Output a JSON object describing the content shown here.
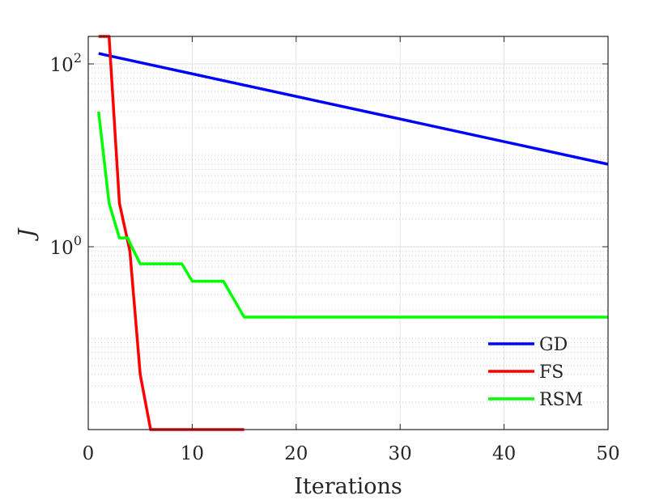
{
  "chart_data": {
    "type": "line",
    "xlabel": "Iterations",
    "ylabel": "J",
    "xlim": [
      0,
      50
    ],
    "ylim": [
      0.01,
      200
    ],
    "yscale": "log",
    "grid": true,
    "legend_position": "bottom-right",
    "x_ticks": [
      0,
      10,
      20,
      30,
      40,
      50
    ],
    "y_ticks": [
      {
        "value": 100,
        "base": "10",
        "exp": "2"
      },
      {
        "value": 1,
        "base": "10",
        "exp": "0"
      }
    ],
    "series": [
      {
        "name": "GD",
        "color": "#0000ff",
        "x": [
          1,
          50
        ],
        "y": [
          130,
          8
        ]
      },
      {
        "name": "FS",
        "color": "#ff0000",
        "x": [
          1,
          2,
          3,
          4,
          5,
          6,
          15
        ],
        "y": [
          200,
          200,
          3.0,
          0.9,
          0.04,
          0.01,
          0.01
        ]
      },
      {
        "name": "RSM",
        "color": "#00ff00",
        "x": [
          1,
          2,
          3,
          3.8,
          4,
          5,
          9,
          10,
          13,
          15,
          50
        ],
        "y": [
          30,
          3.0,
          1.25,
          1.25,
          1.1,
          0.65,
          0.65,
          0.42,
          0.42,
          0.17,
          0.17
        ]
      }
    ]
  }
}
